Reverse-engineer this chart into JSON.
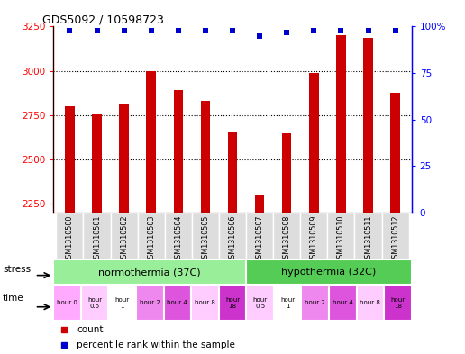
{
  "title": "GDS5092 / 10598723",
  "samples": [
    "GSM1310500",
    "GSM1310501",
    "GSM1310502",
    "GSM1310503",
    "GSM1310504",
    "GSM1310505",
    "GSM1310506",
    "GSM1310507",
    "GSM1310508",
    "GSM1310509",
    "GSM1310510",
    "GSM1310511",
    "GSM1310512"
  ],
  "counts": [
    2800,
    2755,
    2815,
    3000,
    2890,
    2830,
    2650,
    2300,
    2645,
    2990,
    3200,
    3185,
    2875
  ],
  "percentile_ranks": [
    98,
    98,
    98,
    98,
    98,
    98,
    98,
    95,
    97,
    98,
    98,
    98,
    98
  ],
  "ylim_left": [
    2200,
    3250
  ],
  "ylim_right": [
    0,
    100
  ],
  "yticks_left": [
    2250,
    2500,
    2750,
    3000,
    3250
  ],
  "yticks_right": [
    0,
    25,
    50,
    75,
    100
  ],
  "bar_color": "#cc0000",
  "dot_color": "#0000cc",
  "stress_labels": [
    "normothermia (37C)",
    "hypothermia (32C)"
  ],
  "stress_colors": [
    "#99ee99",
    "#55cc55"
  ],
  "time_labels": [
    "hour 0",
    "hour\n0.5",
    "hour\n1",
    "hour 2",
    "hour 4",
    "hour 8",
    "hour\n18",
    "hour\n0.5",
    "hour\n1",
    "hour 2",
    "hour 4",
    "hour 8",
    "hour\n18"
  ],
  "time_colors": [
    "#ffaaff",
    "#ffccff",
    "#ffffff",
    "#ee88ee",
    "#dd55dd",
    "#ffccff",
    "#cc33cc",
    "#ffccff",
    "#ffffff",
    "#ee88ee",
    "#dd55dd",
    "#ffccff",
    "#cc33cc"
  ],
  "legend_count_color": "#cc0000",
  "legend_dot_color": "#0000cc",
  "gridlines": [
    2500,
    2750,
    3000
  ],
  "bar_width": 0.35
}
